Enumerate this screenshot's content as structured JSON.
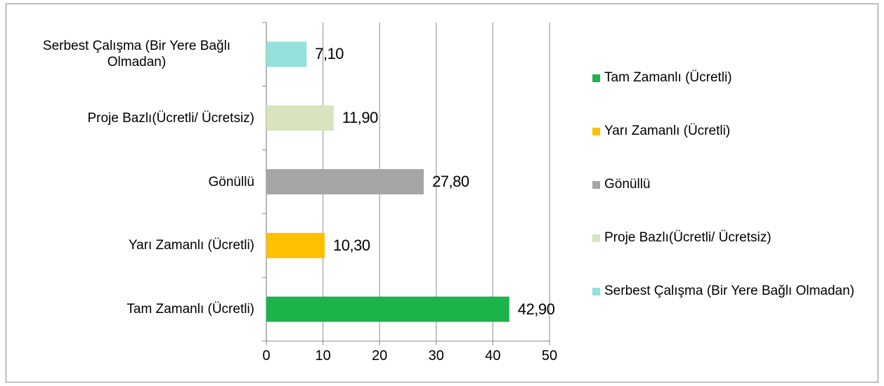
{
  "chart_data": {
    "type": "bar",
    "orientation": "horizontal",
    "categories": [
      "Tam Zamanlı (Ücretli)",
      "Yarı Zamanlı (Ücretli)",
      "Gönüllü",
      "Proje Bazlı(Ücretli/ Ücretsiz)",
      "Serbest Çalışma (Bir Yere Bağlı Olmadan)"
    ],
    "values": [
      42.9,
      10.3,
      27.8,
      11.9,
      7.1
    ],
    "value_labels": [
      "42,90",
      "10,30",
      "27,80",
      "11,90",
      "7,10"
    ],
    "colors": [
      "#1db34b",
      "#ffc000",
      "#a5a5a5",
      "#d7e4bd",
      "#93e1da"
    ],
    "xlim": [
      0,
      50
    ],
    "xticks": [
      0,
      10,
      20,
      30,
      40,
      50
    ],
    "grid": true,
    "legend": "right"
  }
}
